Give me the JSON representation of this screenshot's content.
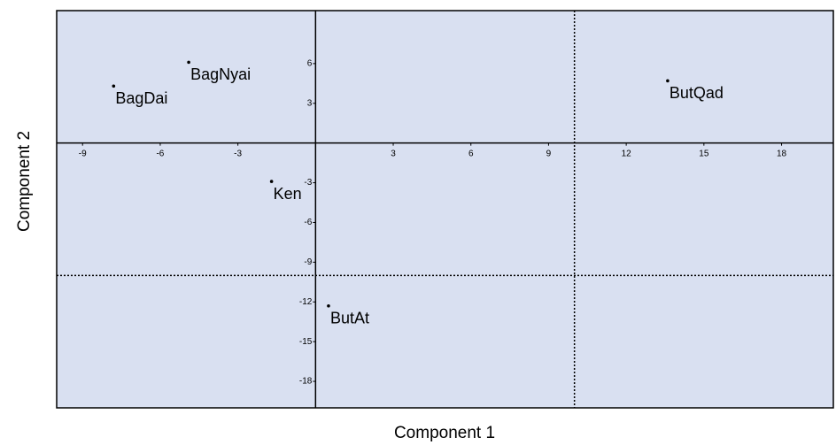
{
  "chart_data": {
    "type": "scatter",
    "x_label": "Component 1",
    "y_label": "Component 2",
    "points": [
      {
        "label": "BagDai",
        "x": -7.8,
        "y": 4.3
      },
      {
        "label": "BagNyai",
        "x": -4.9,
        "y": 6.1
      },
      {
        "label": "ButQad",
        "x": 13.6,
        "y": 4.7
      },
      {
        "label": "Ken",
        "x": -1.7,
        "y": -2.9
      },
      {
        "label": "ButAt",
        "x": 0.5,
        "y": -12.3
      }
    ],
    "color": "#000000",
    "background": "#d9e0f1",
    "xlim": [
      -10,
      20
    ],
    "ylim": [
      -20,
      10
    ],
    "xticks": [
      -9,
      -6,
      -3,
      3,
      6,
      9,
      12,
      15,
      18
    ],
    "yticks": [
      6,
      3,
      -3,
      -6,
      -9,
      -12,
      -15,
      -18
    ],
    "xlines": [
      10
    ],
    "ylines": [
      -10
    ]
  }
}
